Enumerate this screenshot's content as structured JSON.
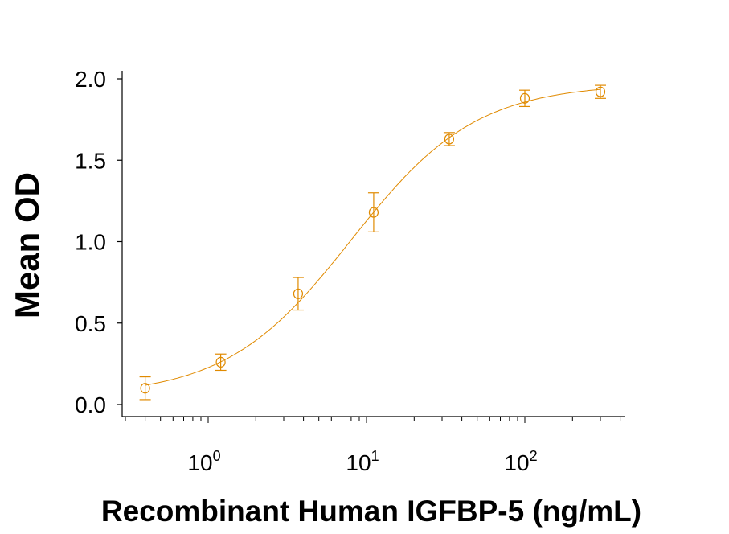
{
  "chart_data": {
    "type": "scatter",
    "title": "",
    "xlabel": "Recombinant Human IGFBP-5 (ng/mL)",
    "ylabel": "Mean OD",
    "xscale": "log",
    "xlim": [
      0.3,
      417
    ],
    "ylim": [
      0,
      2.0
    ],
    "xticks": [
      {
        "base": "10",
        "exp": "0"
      },
      {
        "base": "10",
        "exp": "1"
      },
      {
        "base": "10",
        "exp": "2"
      }
    ],
    "yticks": [
      "0.0",
      "0.5",
      "1.0",
      "1.5",
      "2.0"
    ],
    "grid": false,
    "color": "#E08A00",
    "series": [
      {
        "x": [
          0.4,
          1.2,
          3.7,
          11.1,
          33.3,
          100,
          300
        ],
        "y": [
          0.1,
          0.26,
          0.68,
          1.18,
          1.63,
          1.88,
          1.92
        ],
        "error": [
          0.07,
          0.05,
          0.1,
          0.12,
          0.04,
          0.05,
          0.04
        ]
      }
    ],
    "fit_curve": true
  }
}
